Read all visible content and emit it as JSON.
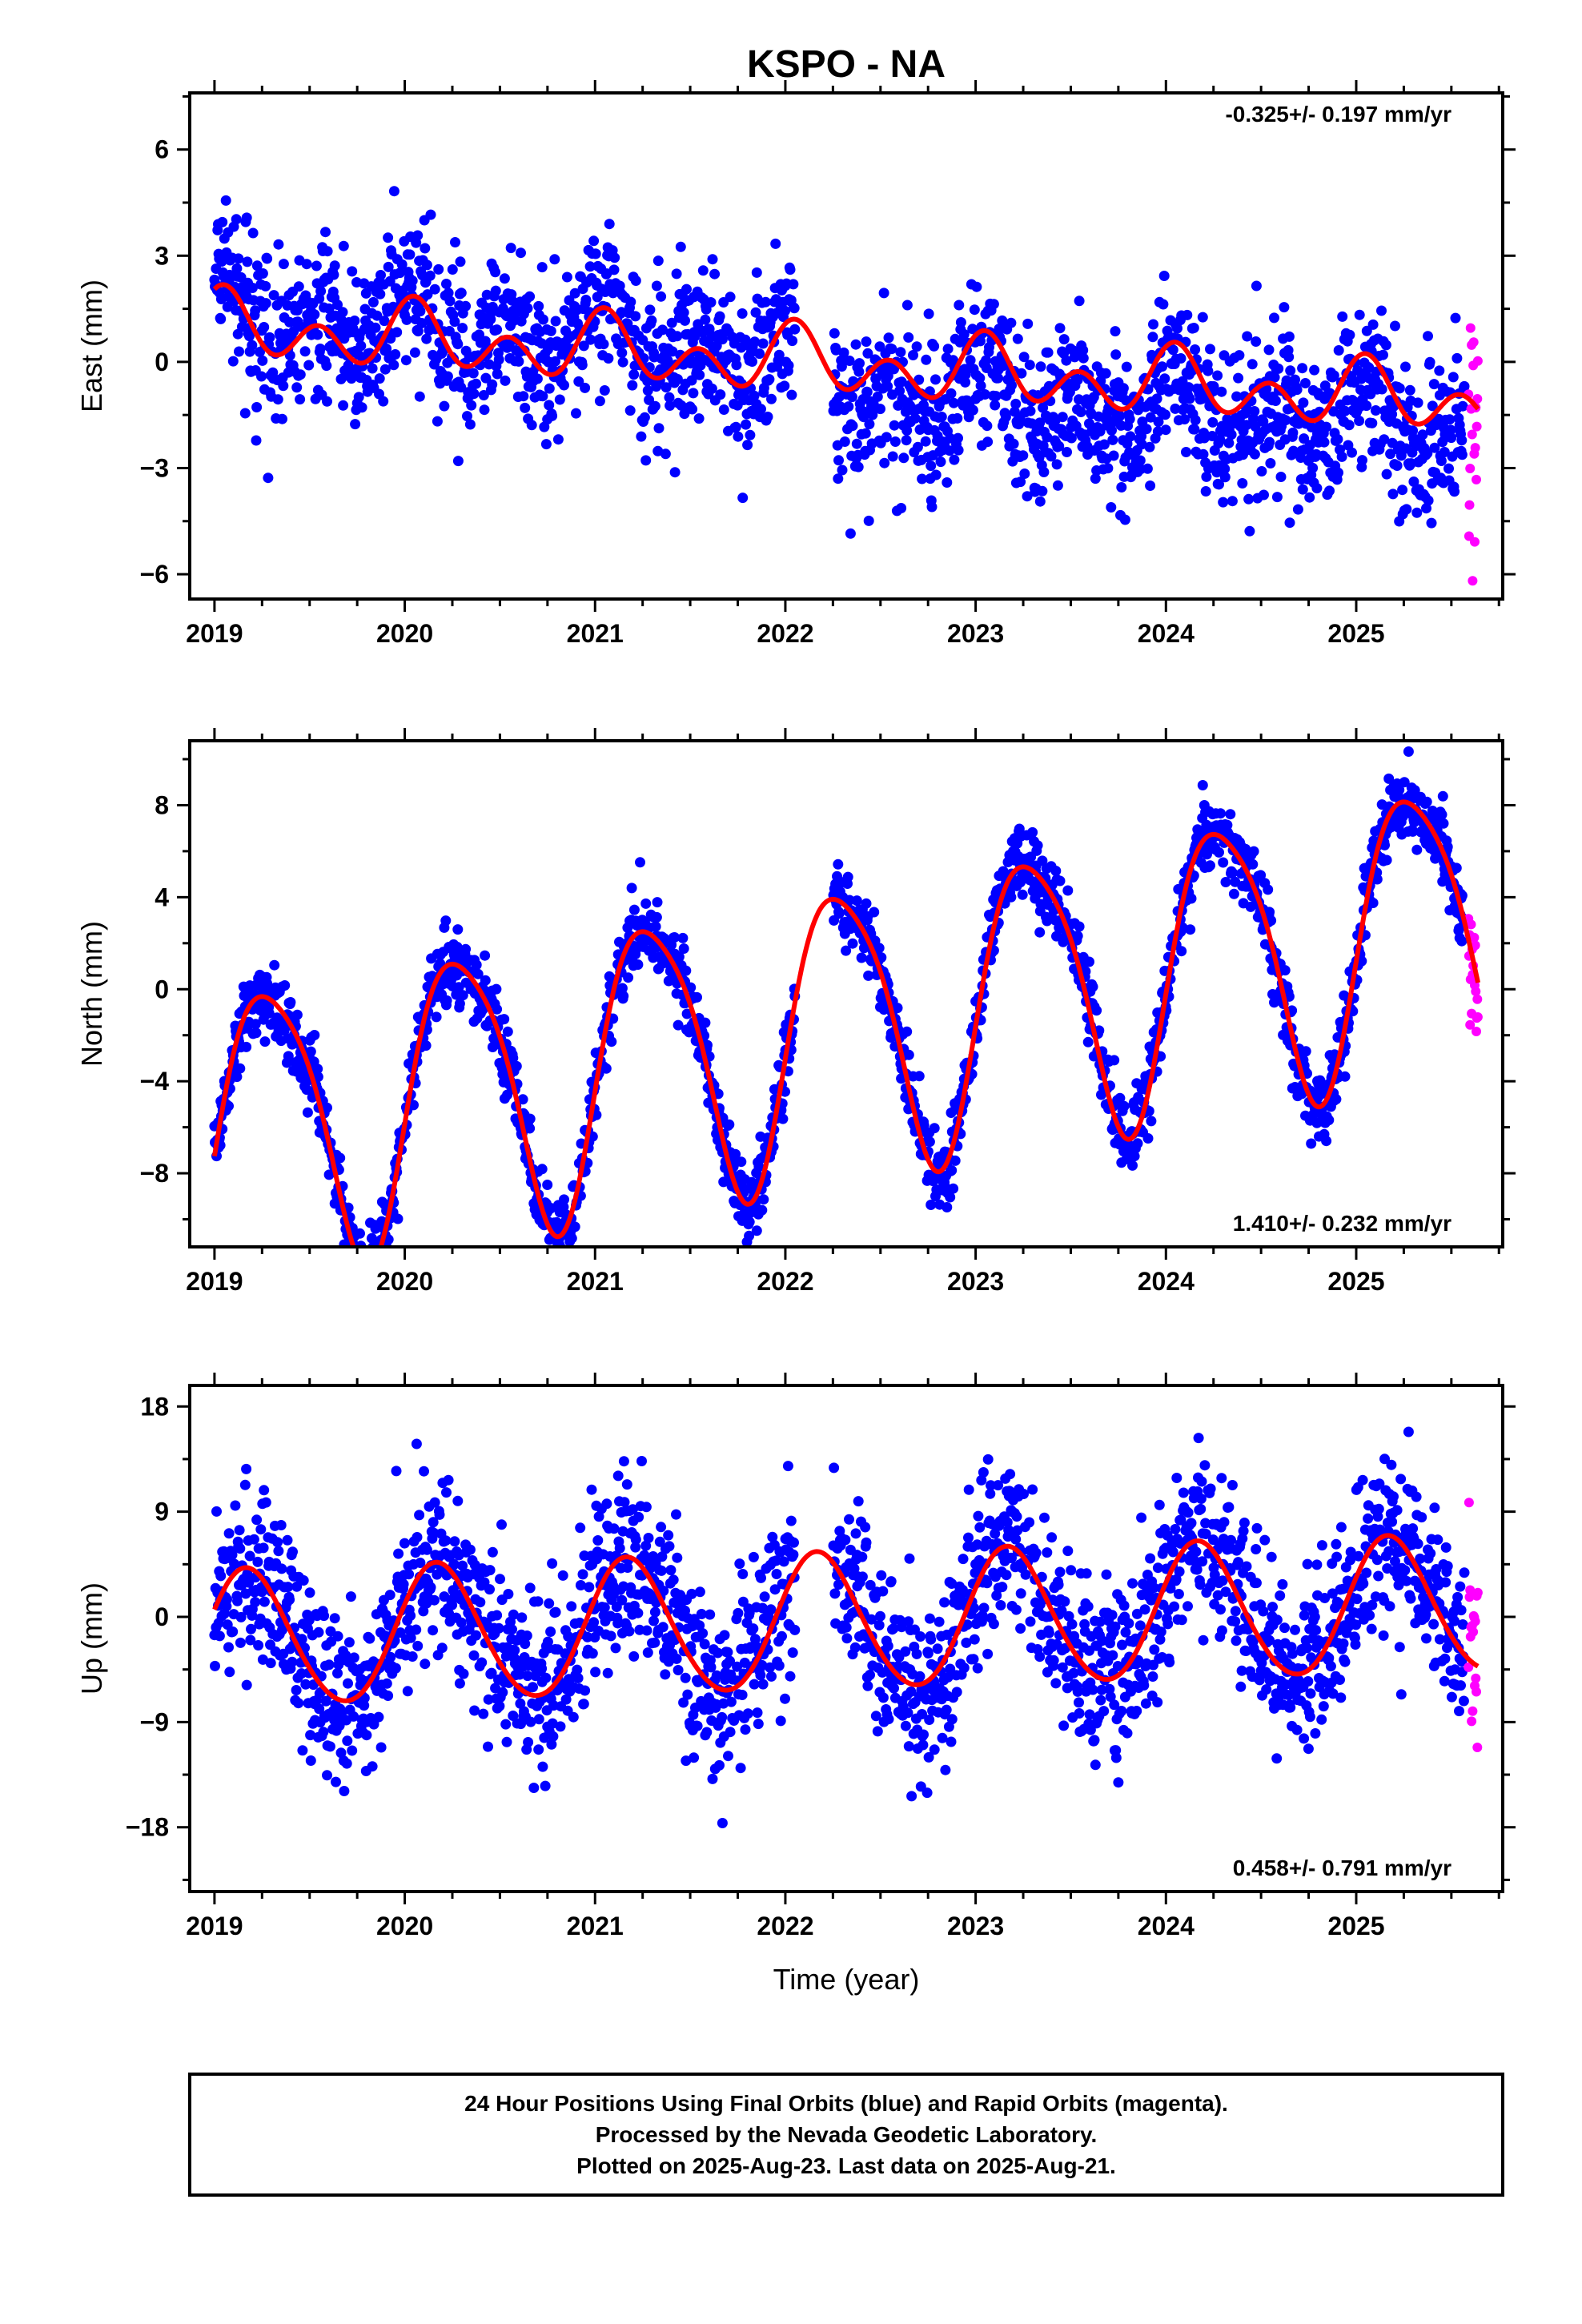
{
  "title": "KSPO - NA",
  "colors": {
    "final_orbits": "#0000ff",
    "rapid_orbits": "#ff00ff",
    "model": "#ff0000",
    "frame": "#000000"
  },
  "chart_data": [
    {
      "type": "scatter",
      "component": "east",
      "ylabel": "East (mm)",
      "xlabel": "",
      "rate_text": "-0.325+/- 0.197 mm/yr",
      "rate_position": "top-right",
      "xlim": [
        2018.87,
        2025.77
      ],
      "ylim": [
        -6.7,
        7.6
      ],
      "xticks": [
        2019,
        2020,
        2021,
        2022,
        2023,
        2024,
        2025
      ],
      "xticklabels": [
        "2019",
        "2020",
        "2021",
        "2022",
        "2023",
        "2024",
        "2025"
      ],
      "yticks": [
        -6,
        -3,
        0,
        3,
        6
      ],
      "yticklabels": [
        "−6",
        "−3",
        "0",
        "3",
        "6"
      ],
      "data_start": 2019.0,
      "final_end": 2025.57,
      "rapid_start": 2025.59,
      "data_end": 2025.64,
      "rate_mm_per_yr": -0.325,
      "offset_mm": 1.0,
      "annual_amp_mm": 0.5,
      "annual_phase": 1.2,
      "semiannual_amp_mm": 0.7,
      "semiannual_phase": 1.0,
      "scatter_sd_mm": 1.1,
      "segment_means_mm": [
        {
          "t0": 2019.0,
          "t1": 2022.05,
          "mean": 0.45
        },
        {
          "t0": 2022.05,
          "t1": 2025.64,
          "mean": -1.15
        }
      ],
      "gaps": [
        [
          2022.05,
          2022.25
        ]
      ]
    },
    {
      "type": "scatter",
      "component": "north",
      "ylabel": "North (mm)",
      "xlabel": "",
      "rate_text": "1.410+/- 0.232 mm/yr",
      "rate_position": "bottom-right",
      "xlim": [
        2018.87,
        2025.77
      ],
      "ylim": [
        -11.2,
        10.8
      ],
      "xticks": [
        2019,
        2020,
        2021,
        2022,
        2023,
        2024,
        2025
      ],
      "xticklabels": [
        "2019",
        "2020",
        "2021",
        "2022",
        "2023",
        "2024",
        "2025"
      ],
      "yticks": [
        -8,
        -4,
        0,
        4,
        8
      ],
      "yticklabels": [
        "−8",
        "−4",
        "0",
        "4",
        "8"
      ],
      "data_start": 2019.0,
      "final_end": 2025.57,
      "rapid_start": 2025.59,
      "data_end": 2025.64,
      "rate_mm_per_yr": 1.41,
      "offset_mm": -6.2,
      "annual_amp_mm": 6.2,
      "annual_phase": -0.25,
      "semiannual_amp_mm": 1.0,
      "semiannual_phase": 0.5,
      "scatter_sd_mm": 0.8,
      "gaps": [
        [
          2022.05,
          2022.25
        ]
      ]
    },
    {
      "type": "scatter",
      "component": "up",
      "ylabel": "Up (mm)",
      "xlabel": "Time (year)",
      "rate_text": "0.458+/- 0.791 mm/yr",
      "rate_position": "bottom-right",
      "xlim": [
        2018.87,
        2025.77
      ],
      "ylim": [
        -23.5,
        19.8
      ],
      "xticks": [
        2019,
        2020,
        2021,
        2022,
        2023,
        2024,
        2025
      ],
      "xticklabels": [
        "2019",
        "2020",
        "2021",
        "2022",
        "2023",
        "2024",
        "2025"
      ],
      "yticks": [
        -18,
        -9,
        0,
        9,
        18
      ],
      "yticklabels": [
        "−18",
        "−9",
        "0",
        "9",
        "18"
      ],
      "data_start": 2019.0,
      "final_end": 2025.57,
      "rapid_start": 2025.59,
      "data_end": 2025.64,
      "rate_mm_per_yr": 0.458,
      "offset_mm": -2.0,
      "annual_amp_mm": 5.8,
      "annual_phase": 0.47,
      "semiannual_amp_mm": 0.4,
      "semiannual_phase": 0.0,
      "scatter_sd_mm": 3.8,
      "gaps": [
        [
          2022.05,
          2022.25
        ]
      ]
    }
  ],
  "footer": {
    "line1": "24 Hour Positions Using Final Orbits (blue) and Rapid Orbits (magenta).",
    "line2": "Processed by the Nevada Geodetic Laboratory.",
    "line3": "Plotted on 2025-Aug-23. Last data on 2025-Aug-21."
  }
}
